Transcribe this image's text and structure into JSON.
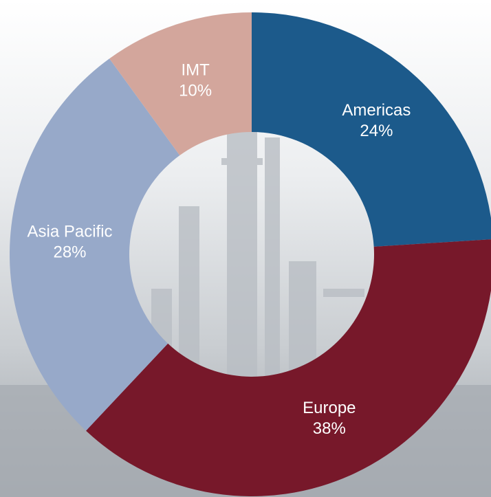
{
  "chart_data": {
    "type": "donut",
    "categories": [
      "Americas",
      "Europe",
      "Asia Pacific",
      "IMT"
    ],
    "values": [
      24,
      38,
      28,
      10
    ],
    "value_labels": [
      "24%",
      "38%",
      "28%",
      "10%"
    ],
    "colors": [
      "#1c5a8b",
      "#77182a",
      "#97a9c9",
      "#d3a69c"
    ]
  }
}
